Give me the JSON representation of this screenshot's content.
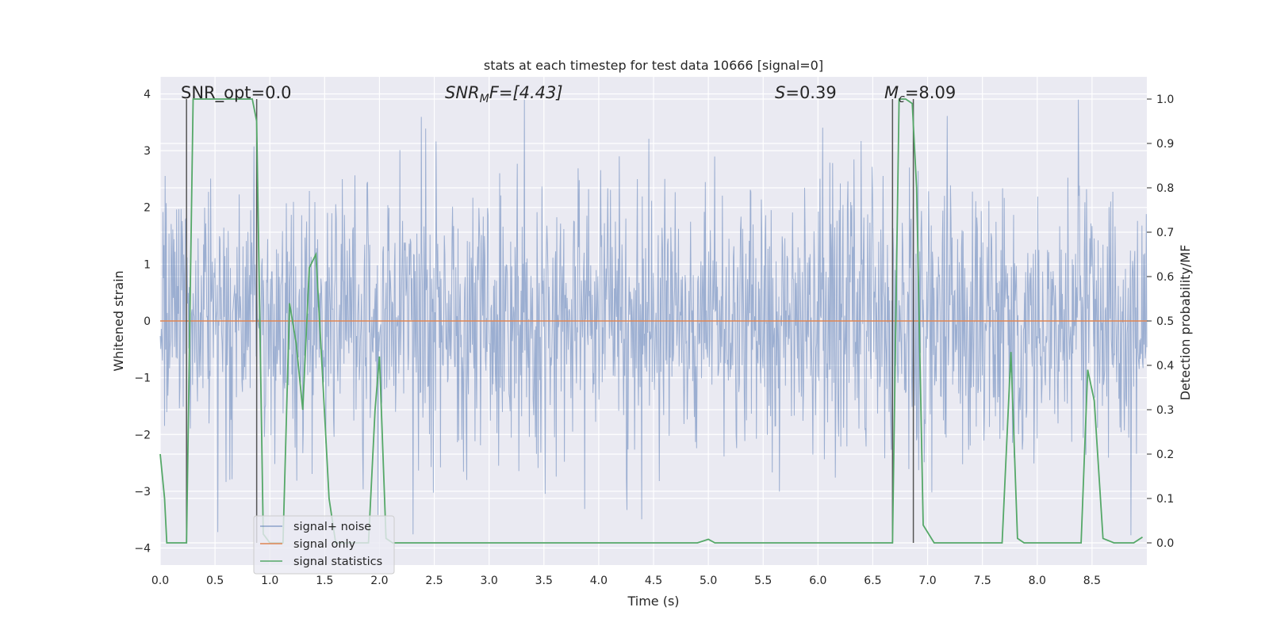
{
  "chart_data": {
    "type": "line",
    "title": "stats at each timestep for test data 10666 [signal=0]",
    "xlabel": "Time (s)",
    "ylabel": "Whitened strain",
    "y2label": "Detection probability/MF",
    "xlim": [
      0,
      9
    ],
    "ylim": [
      -4.3,
      4.3
    ],
    "y2lim": [
      -0.05,
      1.05
    ],
    "x_ticks": [
      0.0,
      0.5,
      1.0,
      1.5,
      2.0,
      2.5,
      3.0,
      3.5,
      4.0,
      4.5,
      5.0,
      5.5,
      6.0,
      6.5,
      7.0,
      7.5,
      8.0,
      8.5
    ],
    "x_tick_labels": [
      "0.0",
      "0.5",
      "1.0",
      "1.5",
      "2.0",
      "2.5",
      "3.0",
      "3.5",
      "4.0",
      "4.5",
      "5.0",
      "5.5",
      "6.0",
      "6.5",
      "7.0",
      "7.5",
      "8.0",
      "8.5"
    ],
    "y_ticks": [
      -4,
      -3,
      -2,
      -1,
      0,
      1,
      2,
      3,
      4
    ],
    "y_tick_labels": [
      "−4",
      "−3",
      "−2",
      "−1",
      "0",
      "1",
      "2",
      "3",
      "4"
    ],
    "y2_ticks": [
      0.0,
      0.1,
      0.2,
      0.3,
      0.4,
      0.5,
      0.6,
      0.7,
      0.8,
      0.9,
      1.0
    ],
    "y2_tick_labels": [
      "0.0",
      "0.1",
      "0.2",
      "0.3",
      "0.4",
      "0.5",
      "0.6",
      "0.7",
      "0.8",
      "0.9",
      "1.0"
    ],
    "grid": true,
    "legend_position": "lower-left",
    "annotations": {
      "snr_opt": "SNR_opt=0.0",
      "snr_mf_main": "SNR",
      "snr_mf_sub": "M",
      "snr_mf_rest": "F=[4.43]",
      "s_italic": "S",
      "s_rest": "=0.39",
      "mc_main": "M",
      "mc_sub": "c",
      "mc_rest": "=8.09"
    },
    "vertical_markers": [
      0.24,
      0.88,
      6.68,
      6.87
    ],
    "series": [
      {
        "name": "signal+ noise",
        "color": "#4c72b0",
        "seed": 10666,
        "n_samples": 1800,
        "std": 1.0
      },
      {
        "name": "signal only",
        "color": "#dd8452",
        "x": [
          0,
          9
        ],
        "y": [
          0,
          0
        ]
      },
      {
        "name": "signal statistics",
        "color": "#55a868",
        "x": [
          0.0,
          0.04,
          0.06,
          0.12,
          0.18,
          0.24,
          0.3,
          0.36,
          0.42,
          0.48,
          0.54,
          0.6,
          0.66,
          0.72,
          0.78,
          0.84,
          0.88,
          0.94,
          1.0,
          1.06,
          1.12,
          1.18,
          1.24,
          1.3,
          1.36,
          1.42,
          1.48,
          1.54,
          1.6,
          1.66,
          1.72,
          1.78,
          1.84,
          1.9,
          1.96,
          2.0,
          2.06,
          2.12,
          2.3,
          3.0,
          4.0,
          4.5,
          4.9,
          5.0,
          5.06,
          5.5,
          6.0,
          6.5,
          6.68,
          6.74,
          6.8,
          6.86,
          6.9,
          6.96,
          7.06,
          7.3,
          7.68,
          7.76,
          7.82,
          7.88,
          8.0,
          8.4,
          8.46,
          8.52,
          8.6,
          8.7,
          8.8,
          8.88,
          8.96
        ],
        "y": [
          0.2,
          0.1,
          0.0,
          0.0,
          0.0,
          0.0,
          1.0,
          1.0,
          1.0,
          1.0,
          1.0,
          1.0,
          1.0,
          1.0,
          1.0,
          1.0,
          0.95,
          0.02,
          0.0,
          0.0,
          0.0,
          0.54,
          0.45,
          0.3,
          0.62,
          0.65,
          0.38,
          0.1,
          0.0,
          0.0,
          0.0,
          0.0,
          0.0,
          0.0,
          0.3,
          0.42,
          0.01,
          0.0,
          0.0,
          0.0,
          0.0,
          0.0,
          0.0,
          0.008,
          0.0,
          0.0,
          0.0,
          0.0,
          0.0,
          1.0,
          1.0,
          0.99,
          0.8,
          0.04,
          0.0,
          0.0,
          0.0,
          0.43,
          0.01,
          0.0,
          0.0,
          0.0,
          0.39,
          0.32,
          0.01,
          0.0,
          0.0,
          0.0,
          0.013
        ]
      }
    ]
  }
}
